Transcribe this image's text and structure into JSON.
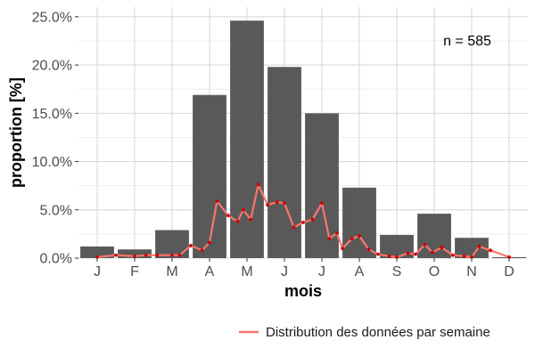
{
  "chart_data": {
    "type": "bar",
    "categories": [
      "J",
      "F",
      "M",
      "A",
      "M",
      "J",
      "J",
      "A",
      "S",
      "O",
      "N",
      "D"
    ],
    "values": [
      1.2,
      0.9,
      2.9,
      16.9,
      24.6,
      19.8,
      15.0,
      7.3,
      2.4,
      4.6,
      2.1,
      0.1
    ],
    "ylim": [
      0,
      26
    ],
    "yticks": [
      0,
      5,
      10,
      15,
      20,
      25
    ],
    "ytick_labels": [
      "0.0%",
      "5.0%",
      "10.0%",
      "15.0%",
      "20.0%",
      "25.0%"
    ],
    "xlabel": "mois",
    "ylabel": "proportion [%]",
    "annotation": "n = 585",
    "grid": true,
    "legend_position": "bottom-right",
    "bar_color": "#595959",
    "series": [
      {
        "name": "Distribution des données par semaine",
        "type": "line",
        "color": "#f8766d",
        "marker_color": "#cc0000",
        "x": [
          1.0,
          1.5,
          2.0,
          2.3,
          2.6,
          3.0,
          3.2,
          3.5,
          3.8,
          4.0,
          4.2,
          4.5,
          4.75,
          4.9,
          5.1,
          5.3,
          5.55,
          5.8,
          6.0,
          6.25,
          6.5,
          6.75,
          7.0,
          7.2,
          7.4,
          7.55,
          7.8,
          8.0,
          8.25,
          8.5,
          8.8,
          9.0,
          9.3,
          9.5,
          9.75,
          9.95,
          10.2,
          10.5,
          10.8,
          11.0,
          11.2,
          11.5,
          12.0
        ],
        "y": [
          0.1,
          0.3,
          0.2,
          0.3,
          0.3,
          0.3,
          0.3,
          1.3,
          0.8,
          1.6,
          5.9,
          4.4,
          3.8,
          5.0,
          4.0,
          7.6,
          5.5,
          5.8,
          5.7,
          3.2,
          3.7,
          4.0,
          5.7,
          2.0,
          2.6,
          1.0,
          2.0,
          2.3,
          0.9,
          0.4,
          0.2,
          0.1,
          0.5,
          0.4,
          1.4,
          0.6,
          1.1,
          0.3,
          0.2,
          0.1,
          1.2,
          0.8,
          0.1
        ]
      }
    ]
  }
}
